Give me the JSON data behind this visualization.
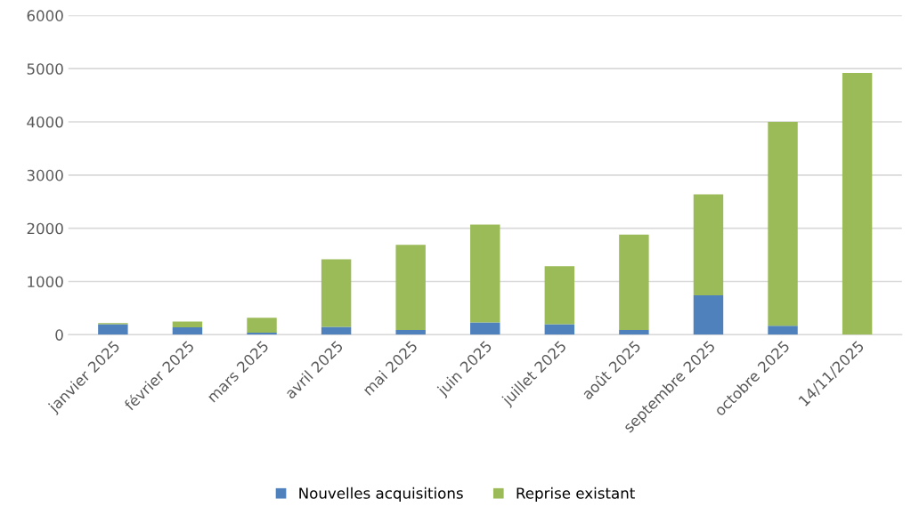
{
  "chart_data": {
    "type": "bar",
    "stacked": true,
    "categories": [
      "janvier 2025",
      "février 2025",
      "mars 2025",
      "avril 2025",
      "mai 2025",
      "juin 2025",
      "juillet 2025",
      "août 2025",
      "septembre 2025",
      "octobre 2025",
      "14/11/2025"
    ],
    "series": [
      {
        "name": "Nouvelles acquisitions",
        "color": "#4f81bd",
        "values": [
          200,
          140,
          40,
          150,
          90,
          230,
          200,
          90,
          740,
          170,
          0
        ]
      },
      {
        "name": "Reprise existant",
        "color": "#9bbb59",
        "values": [
          20,
          110,
          280,
          1270,
          1600,
          1840,
          1090,
          1790,
          1900,
          3830,
          4920
        ]
      }
    ],
    "ylim": [
      0,
      6000
    ],
    "yticks": [
      0,
      1000,
      2000,
      3000,
      4000,
      5000,
      6000
    ],
    "grid": "y",
    "legend": "bottom"
  }
}
